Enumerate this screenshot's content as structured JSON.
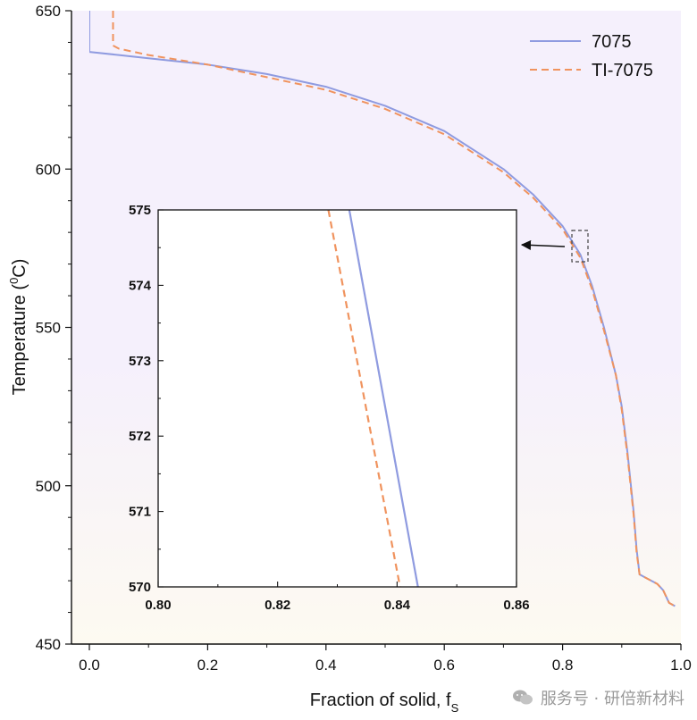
{
  "colors": {
    "series_7075": "#8f9be0",
    "series_TI7075": "#f0935e",
    "bg_top": "#f5f0fc",
    "bg_bottom": "#fdfaf1"
  },
  "chart_data": [
    {
      "id": "main",
      "type": "line",
      "xlabel": "Fraction of solid, f",
      "xlabel_sub": "S",
      "ylabel": "Temperature (",
      "ylabel_sup": "0",
      "ylabel_end": "C)",
      "xlim": [
        0,
        1.0
      ],
      "ylim": [
        450,
        650
      ],
      "xticks": [
        0.0,
        0.2,
        0.4,
        0.6,
        0.8,
        1.0
      ],
      "xtick_labels": [
        "0.0",
        "0.2",
        "0.4",
        "0.6",
        "0.8",
        "1.0"
      ],
      "yticks": [
        450,
        500,
        550,
        600,
        650
      ],
      "ytick_labels": [
        "450",
        "500",
        "550",
        "600",
        "650"
      ],
      "legend_position": "top-right",
      "series": [
        {
          "name": "7075",
          "style": "solid",
          "x": [
            0.0,
            0.0,
            0.05,
            0.1,
            0.2,
            0.3,
            0.4,
            0.5,
            0.6,
            0.7,
            0.75,
            0.8,
            0.83,
            0.85,
            0.87,
            0.89,
            0.9,
            0.91,
            0.92,
            0.925,
            0.93,
            0.94,
            0.96,
            0.97,
            0.98,
            0.99
          ],
          "y": [
            650,
            637,
            636,
            635,
            633,
            630,
            626,
            620,
            612,
            600,
            592,
            582,
            573,
            563,
            550,
            535,
            525,
            510,
            492,
            480,
            472,
            471,
            469,
            467,
            463,
            462
          ]
        },
        {
          "name": "TI-7075",
          "style": "dashed",
          "x": [
            0.04,
            0.04,
            0.05,
            0.1,
            0.2,
            0.3,
            0.4,
            0.5,
            0.6,
            0.7,
            0.75,
            0.8,
            0.83,
            0.85,
            0.87,
            0.89,
            0.9,
            0.91,
            0.92,
            0.925,
            0.93,
            0.94,
            0.96,
            0.97,
            0.98,
            0.99
          ],
          "y": [
            650,
            639,
            638,
            636,
            633,
            629,
            625,
            619,
            611,
            599,
            591,
            581,
            572,
            562,
            549,
            535,
            524,
            509,
            491,
            479,
            472,
            471,
            469,
            467,
            463,
            462
          ]
        }
      ],
      "annotations": [
        "dashed box near (0.82–0.84, 570–575) with arrow to inset"
      ]
    },
    {
      "id": "inset",
      "type": "line",
      "xlim": [
        0.8,
        0.86
      ],
      "ylim": [
        570,
        575
      ],
      "xticks": [
        0.8,
        0.82,
        0.84,
        0.86
      ],
      "xtick_labels": [
        "0.80",
        "0.82",
        "0.84",
        "0.86"
      ],
      "yticks": [
        570,
        571,
        572,
        573,
        574,
        575
      ],
      "ytick_labels": [
        "570",
        "571",
        "572",
        "573",
        "574",
        "575"
      ],
      "series": [
        {
          "name": "7075",
          "style": "solid",
          "x": [
            0.832,
            0.8435
          ],
          "y": [
            575,
            570
          ]
        },
        {
          "name": "TI-7075",
          "style": "dashed",
          "x": [
            0.8285,
            0.8405
          ],
          "y": [
            575,
            570
          ]
        }
      ]
    }
  ],
  "watermark": {
    "text": "服务号 · 研倍新材料",
    "icon": "wechat-icon"
  }
}
